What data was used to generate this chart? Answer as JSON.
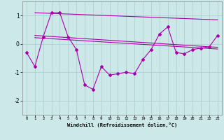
{
  "xlabel": "Windchill (Refroidissement éolien,°C)",
  "x": [
    0,
    1,
    2,
    3,
    4,
    5,
    6,
    7,
    8,
    9,
    10,
    11,
    12,
    13,
    14,
    15,
    16,
    17,
    18,
    19,
    20,
    21,
    22,
    23
  ],
  "main_line": [
    -0.3,
    -0.8,
    0.25,
    1.1,
    1.1,
    0.25,
    -0.2,
    -1.45,
    -1.6,
    -0.8,
    -1.1,
    -1.05,
    -1.0,
    -1.05,
    -0.55,
    -0.2,
    0.35,
    0.6,
    -0.3,
    -0.35,
    -0.2,
    -0.15,
    -0.1,
    0.3
  ],
  "trend1_x": [
    1,
    23
  ],
  "trend1_y": [
    1.1,
    0.85
  ],
  "trend2_x": [
    1,
    23
  ],
  "trend2_y": [
    0.3,
    -0.12
  ],
  "trend3_x": [
    1,
    23
  ],
  "trend3_y": [
    0.22,
    -0.18
  ],
  "ylim": [
    -2.5,
    1.5
  ],
  "xlim": [
    -0.5,
    23.5
  ],
  "yticks": [
    -2,
    -1,
    0,
    1
  ],
  "xticks": [
    0,
    1,
    2,
    3,
    4,
    5,
    6,
    7,
    8,
    9,
    10,
    11,
    12,
    13,
    14,
    15,
    16,
    17,
    18,
    19,
    20,
    21,
    22,
    23
  ],
  "line_color": "#aa00aa",
  "bg_color": "#cce8e8",
  "grid_color": "#aacccc",
  "font_color": "#000000",
  "spine_color": "#888888"
}
